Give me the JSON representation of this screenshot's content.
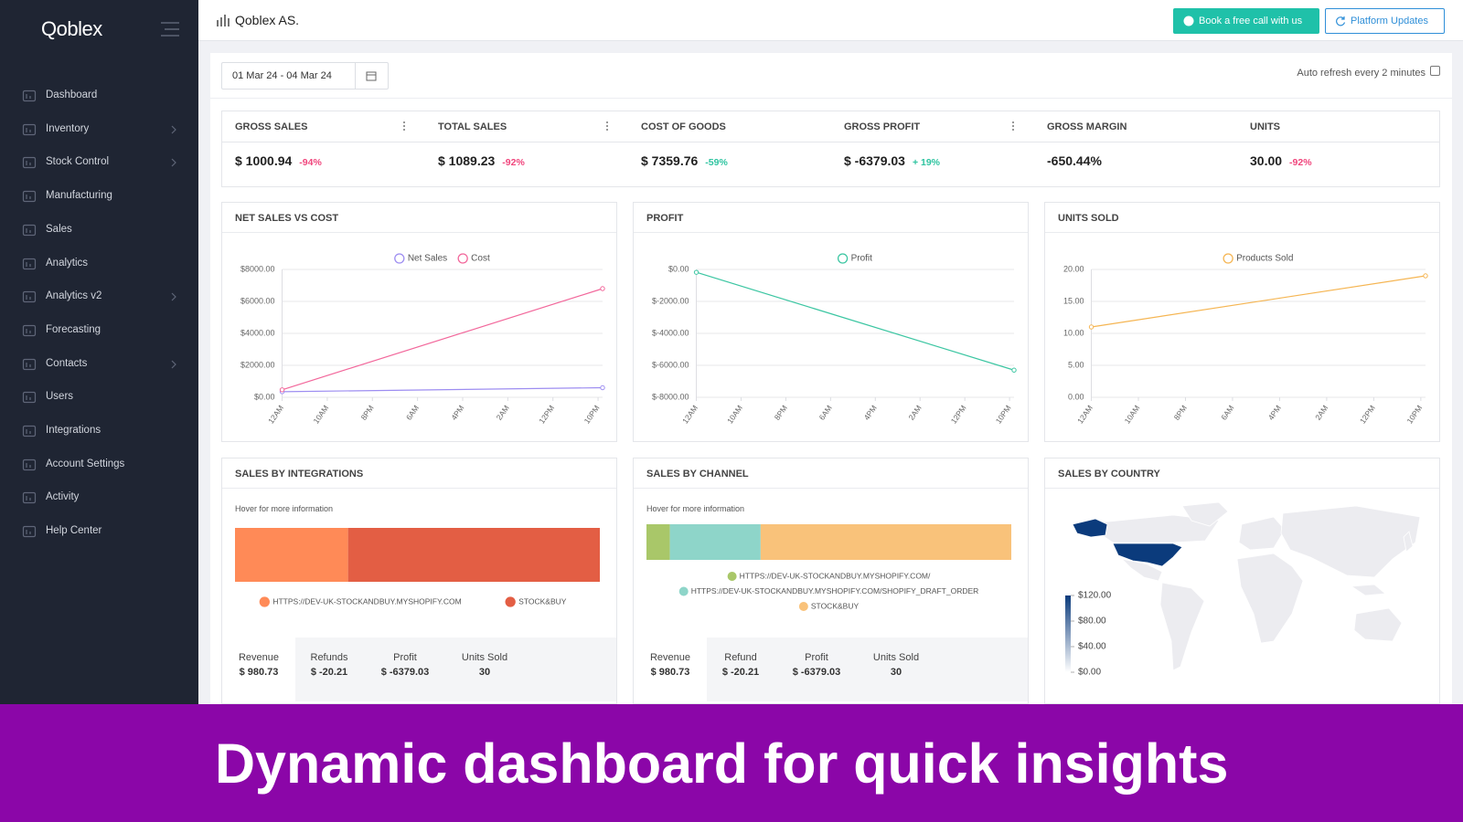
{
  "sidebar": {
    "logo": "Qoblex",
    "items": [
      {
        "label": "Dashboard",
        "has_submenu": false
      },
      {
        "label": "Inventory",
        "has_submenu": true
      },
      {
        "label": "Stock Control",
        "has_submenu": true
      },
      {
        "label": "Manufacturing",
        "has_submenu": false
      },
      {
        "label": "Sales",
        "has_submenu": false
      },
      {
        "label": "Analytics",
        "has_submenu": false
      },
      {
        "label": "Analytics v2",
        "has_submenu": true
      },
      {
        "label": "Forecasting",
        "has_submenu": false
      },
      {
        "label": "Contacts",
        "has_submenu": true
      },
      {
        "label": "Users",
        "has_submenu": false
      },
      {
        "label": "Integrations",
        "has_submenu": false
      },
      {
        "label": "Account Settings",
        "has_submenu": false
      },
      {
        "label": "Activity",
        "has_submenu": false
      },
      {
        "label": "Help Center",
        "has_submenu": false
      }
    ]
  },
  "header": {
    "title": "Qoblex AS.",
    "buttons": [
      "Book a free call with us",
      "Platform Updates"
    ]
  },
  "toolbar": {
    "date_range": "01 Mar 24 - 04 Mar 24",
    "auto_refresh": "Auto refresh every 2 minutes"
  },
  "kpis": [
    {
      "label": "GROSS SALES",
      "value": "$ 1000.94",
      "change": "-94%",
      "change_color": "#f0457c",
      "menu": true
    },
    {
      "label": "TOTAL SALES",
      "value": "$ 1089.23",
      "change": "-92%",
      "change_color": "#f0457c",
      "menu": true
    },
    {
      "label": "COST OF GOODS",
      "value": "$ 7359.76",
      "change": "-59%",
      "change_color": "#2ec4a0",
      "menu": false
    },
    {
      "label": "GROSS PROFIT",
      "value": "$ -6379.03",
      "change": "+ 19%",
      "change_color": "#2ec4a0",
      "menu": true
    },
    {
      "label": "GROSS MARGIN",
      "value": "-650.44%",
      "menu": false
    },
    {
      "label": "UNITS",
      "value": "30.00",
      "change": "-92%",
      "change_color": "#f0457c",
      "menu": false
    }
  ],
  "chart_data": [
    {
      "type": "line",
      "title": "NET SALES VS COST",
      "x": [
        0,
        71
      ],
      "xlim": [
        0,
        71
      ],
      "xticks": [
        {
          "value": 0,
          "label": "12AM"
        },
        {
          "value": 10,
          "label": "10AM"
        },
        {
          "value": 20,
          "label": "8PM"
        },
        {
          "value": 30,
          "label": "6AM"
        },
        {
          "value": 40,
          "label": "4PM"
        },
        {
          "value": 50,
          "label": "2AM"
        },
        {
          "value": 60,
          "label": "12PM"
        },
        {
          "value": 70,
          "label": "10PM"
        }
      ],
      "ylim": [
        0,
        8000
      ],
      "yticks": [
        {
          "value": 0,
          "label": "$0.00"
        },
        {
          "value": 2000,
          "label": "$2000.00"
        },
        {
          "value": 4000,
          "label": "$4000.00"
        },
        {
          "value": 6000,
          "label": "$6000.00"
        },
        {
          "value": 8000,
          "label": "$8000.00"
        }
      ],
      "grid": true,
      "legend": "top",
      "series": [
        {
          "name": "Net Sales",
          "color": "#9d8df1",
          "values": [
            350,
            600
          ]
        },
        {
          "name": "Cost",
          "color": "#f2679b",
          "values": [
            470,
            6800
          ]
        }
      ]
    },
    {
      "type": "line",
      "title": "PROFIT",
      "x": [
        0,
        71
      ],
      "xlim": [
        0,
        71
      ],
      "xticks": [
        {
          "value": 0,
          "label": "12AM"
        },
        {
          "value": 10,
          "label": "10AM"
        },
        {
          "value": 20,
          "label": "8PM"
        },
        {
          "value": 30,
          "label": "6AM"
        },
        {
          "value": 40,
          "label": "4PM"
        },
        {
          "value": 50,
          "label": "2AM"
        },
        {
          "value": 60,
          "label": "12PM"
        },
        {
          "value": 70,
          "label": "10PM"
        }
      ],
      "ylim": [
        -8000,
        0
      ],
      "yticks": [
        {
          "value": -8000,
          "label": "$-8000.00"
        },
        {
          "value": -6000,
          "label": "$-6000.00"
        },
        {
          "value": -4000,
          "label": "$-4000.00"
        },
        {
          "value": -2000,
          "label": "$-2000.00"
        },
        {
          "value": 0,
          "label": "$0.00"
        }
      ],
      "grid": true,
      "legend": "top",
      "series": [
        {
          "name": "Profit",
          "color": "#3cc6a2",
          "values": [
            -180,
            -6300
          ]
        }
      ]
    },
    {
      "type": "line",
      "title": "UNITS SOLD",
      "x": [
        0,
        71
      ],
      "xlim": [
        0,
        71
      ],
      "xticks": [
        {
          "value": 0,
          "label": "12AM"
        },
        {
          "value": 10,
          "label": "10AM"
        },
        {
          "value": 20,
          "label": "8PM"
        },
        {
          "value": 30,
          "label": "6AM"
        },
        {
          "value": 40,
          "label": "4PM"
        },
        {
          "value": 50,
          "label": "2AM"
        },
        {
          "value": 60,
          "label": "12PM"
        },
        {
          "value": 70,
          "label": "10PM"
        }
      ],
      "ylim": [
        0,
        20
      ],
      "yticks": [
        {
          "value": 0,
          "label": "0.00"
        },
        {
          "value": 5,
          "label": "5.00"
        },
        {
          "value": 10,
          "label": "10.00"
        },
        {
          "value": 15,
          "label": "15.00"
        },
        {
          "value": 20,
          "label": "20.00"
        }
      ],
      "grid": true,
      "legend": "top",
      "series": [
        {
          "name": "Products Sold",
          "color": "#f5b552",
          "values": [
            11,
            19
          ]
        }
      ]
    },
    {
      "type": "stacked-bar",
      "title": "SALES BY INTEGRATIONS",
      "subtitle": "Hover for more information",
      "series": [
        {
          "name": "HTTPS://DEV-UK-STOCKANDBUY.MYSHOPIFY.COM",
          "color": "#ff8a57",
          "values": [
            304
          ]
        },
        {
          "name": "STOCK&BUY",
          "color": "#e35e44",
          "values": [
            677
          ]
        }
      ],
      "summary": [
        {
          "label": "Revenue",
          "value": "$ 980.73"
        },
        {
          "label": "Refunds",
          "value": "$ -20.21"
        },
        {
          "label": "Profit",
          "value": "$ -6379.03"
        },
        {
          "label": "Units Sold",
          "value": "30"
        }
      ]
    },
    {
      "type": "stacked-bar",
      "title": "SALES BY CHANNEL",
      "subtitle": "Hover for more information",
      "series": [
        {
          "name": "HTTPS://DEV-UK-STOCKANDBUY.MYSHOPIFY.COM/",
          "color": "#a9c769",
          "values": [
            63
          ]
        },
        {
          "name": "HTTPS://DEV-UK-STOCKANDBUY.MYSHOPIFY.COM/SHOPIFY_DRAFT_ORDER",
          "color": "#8ed5c9",
          "values": [
            244
          ]
        },
        {
          "name": "STOCK&BUY",
          "color": "#f9c27a",
          "values": [
            674
          ]
        }
      ],
      "summary": [
        {
          "label": "Revenue",
          "value": "$ 980.73"
        },
        {
          "label": "Refund",
          "value": "$ -20.21"
        },
        {
          "label": "Profit",
          "value": "$ -6379.03"
        },
        {
          "label": "Units Sold",
          "value": "30"
        }
      ]
    }
  ],
  "country_map": {
    "title": "SALES BY COUNTRY",
    "highlight_color": "#0b3b7c",
    "scale_range": [
      0,
      120
    ],
    "scale_ticks": [
      {
        "value": 120,
        "label": "$120.00"
      },
      {
        "value": 80,
        "label": "$80.00"
      },
      {
        "value": 40,
        "label": "$40.00"
      },
      {
        "value": 0,
        "label": "$0.00"
      }
    ]
  },
  "banner": {
    "text": "Dynamic dashboard for quick insights"
  }
}
